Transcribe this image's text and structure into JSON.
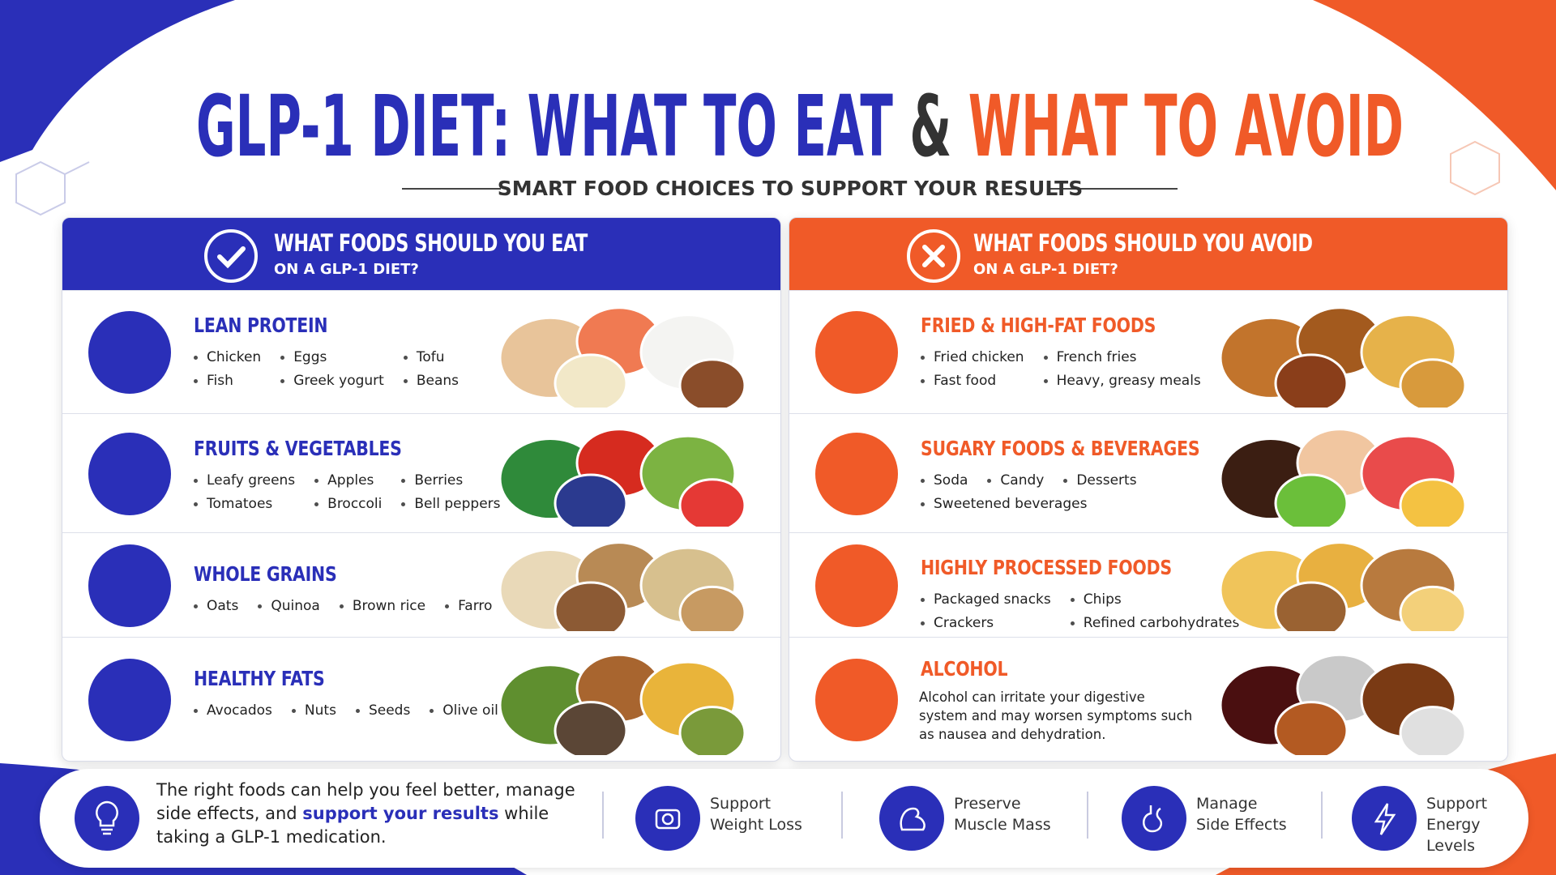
{
  "header": {
    "title_eat": "GLP-1 DIET: WHAT TO EAT",
    "title_amp": "&",
    "title_avoid": "WHAT TO AVOID",
    "subtitle": "SMART FOOD CHOICES TO SUPPORT YOUR RESULTS"
  },
  "eat": {
    "heading": "WHAT FOODS SHOULD YOU EAT",
    "subheading": "ON A GLP-1 DIET?",
    "sections": [
      {
        "title": "LEAN PROTEIN",
        "items": [
          "Chicken",
          "Eggs",
          "Tofu",
          "Fish",
          "Greek yogurt",
          "Beans"
        ]
      },
      {
        "title": "FRUITS & VEGETABLES",
        "items": [
          "Leafy greens",
          "Apples",
          "Berries",
          "Tomatoes",
          "Broccoli",
          "Bell peppers"
        ]
      },
      {
        "title": "WHOLE GRAINS",
        "items": [
          "Oats",
          "Quinoa",
          "Brown rice",
          "Farro"
        ]
      },
      {
        "title": "HEALTHY FATS",
        "items": [
          "Avocados",
          "Nuts",
          "Seeds",
          "Olive oil"
        ]
      }
    ]
  },
  "avoid": {
    "heading": "WHAT FOODS SHOULD YOU AVOID",
    "subheading": "ON A GLP-1 DIET?",
    "sections": [
      {
        "title": "FRIED & HIGH-FAT FOODS",
        "items": [
          "Fried chicken",
          "French fries",
          "Fast food",
          "Heavy, greasy meals"
        ]
      },
      {
        "title": "SUGARY FOODS & BEVERAGES",
        "items": [
          "Soda",
          "Candy",
          "Desserts",
          "Sweetened beverages"
        ]
      },
      {
        "title": "HIGHLY PROCESSED FOODS",
        "items": [
          "Packaged snacks",
          "Chips",
          "Crackers",
          "Refined carbohydrates"
        ]
      },
      {
        "title": "ALCOHOL",
        "description": "Alcohol can irritate your digestive system and may worsen symptoms such as nausea and dehydration."
      }
    ]
  },
  "footer": {
    "message_start": "The right foods can help you feel better, manage side effects, and",
    "message_emphasis": "support your results",
    "message_end": "while taking a GLP-1 medication.",
    "benefits": [
      {
        "lines": [
          "Support",
          "Weight Loss"
        ]
      },
      {
        "lines": [
          "Preserve",
          "Muscle Mass"
        ]
      },
      {
        "lines": [
          "Manage",
          "Side Effects"
        ]
      },
      {
        "lines": [
          "Support",
          "Energy Levels"
        ]
      }
    ]
  }
}
